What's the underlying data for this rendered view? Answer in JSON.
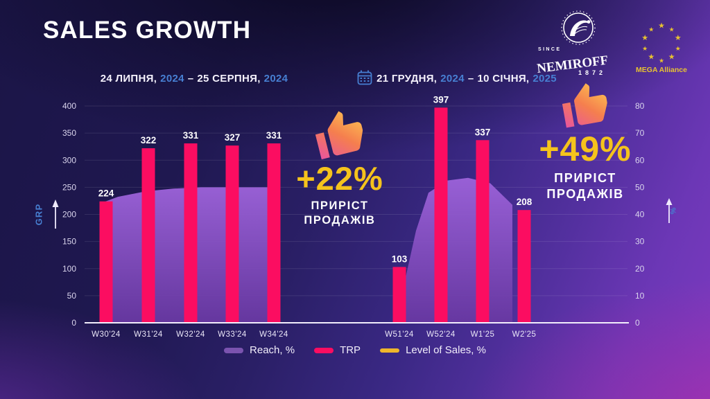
{
  "slide": {
    "title": "SALES GROWTH",
    "periods": [
      {
        "part1": "24 ЛИПНЯ,",
        "year1": "2024",
        "dash": "–",
        "part2": "25 СЕРПНЯ,",
        "year2": "2024"
      },
      {
        "part1": "21 ГРУДНЯ,",
        "year1": "2024",
        "dash": "–",
        "part2": "10 СІЧНЯ,",
        "year2": "2025"
      }
    ],
    "logos": {
      "nemiroff": {
        "since": "SINCE",
        "name": "NEMIROFF",
        "year": "1872"
      },
      "mega": {
        "name": "MEGA Alliance"
      }
    },
    "growth": [
      {
        "value": "+22%",
        "label1": "ПРИРІСТ",
        "label2": "ПРОДАЖІВ"
      },
      {
        "value": "+49%",
        "label1": "ПРИРІСТ",
        "label2": "ПРОДАЖІВ"
      }
    ],
    "colors": {
      "bar_pink": "#fb0d61",
      "area_purple": "#8b52c9",
      "accent_yellow": "#f5c31c",
      "axis_blue": "#477fd2",
      "sales_line_yellow": "#efb62b"
    }
  },
  "chart_data": {
    "type": "bar",
    "title": "SALES GROWTH",
    "left_axis": {
      "label": "GRP",
      "min": 0,
      "max": 400,
      "tick_step": 50
    },
    "right_axis": {
      "label": "%",
      "min": 0,
      "max": 80,
      "tick_step": 10
    },
    "legend": [
      {
        "label": "Reach, %",
        "color": "#7b53af"
      },
      {
        "label": "TRP",
        "color": "#fb0d61"
      },
      {
        "label": "Level of Sales, %",
        "color": "#efb62b"
      }
    ],
    "grid": "horizontal",
    "groups": [
      {
        "period": "24 ЛИПНЯ, 2024 – 25 СЕРПНЯ, 2024",
        "categories": [
          "W30'24",
          "W31'24",
          "W32'24",
          "W33'24",
          "W34'24"
        ],
        "trp": [
          224,
          322,
          331,
          327,
          331
        ],
        "sales_growth": "+22%",
        "reach_profile_pct": [
          [
            144,
            44
          ],
          [
            170,
            46.5
          ],
          [
            210,
            48.5
          ],
          [
            250,
            49.5
          ],
          [
            290,
            50
          ],
          [
            340,
            50
          ],
          [
            400,
            50
          ]
        ]
      },
      {
        "period": "21 ГРУДНЯ, 2024 – 10 СІЧНЯ, 2025",
        "categories": [
          "W51'24",
          "W52'24",
          "W1'25",
          "W2'25"
        ],
        "trp": [
          103,
          397,
          337,
          208
        ],
        "sales_growth": "+49%",
        "reach_profile_pct": [
          [
            567,
            2
          ],
          [
            580,
            11
          ],
          [
            600,
            34
          ],
          [
            618,
            48
          ],
          [
            645,
            52.5
          ],
          [
            675,
            53.5
          ],
          [
            707,
            51.5
          ],
          [
            739,
            43.5
          ]
        ]
      }
    ]
  }
}
